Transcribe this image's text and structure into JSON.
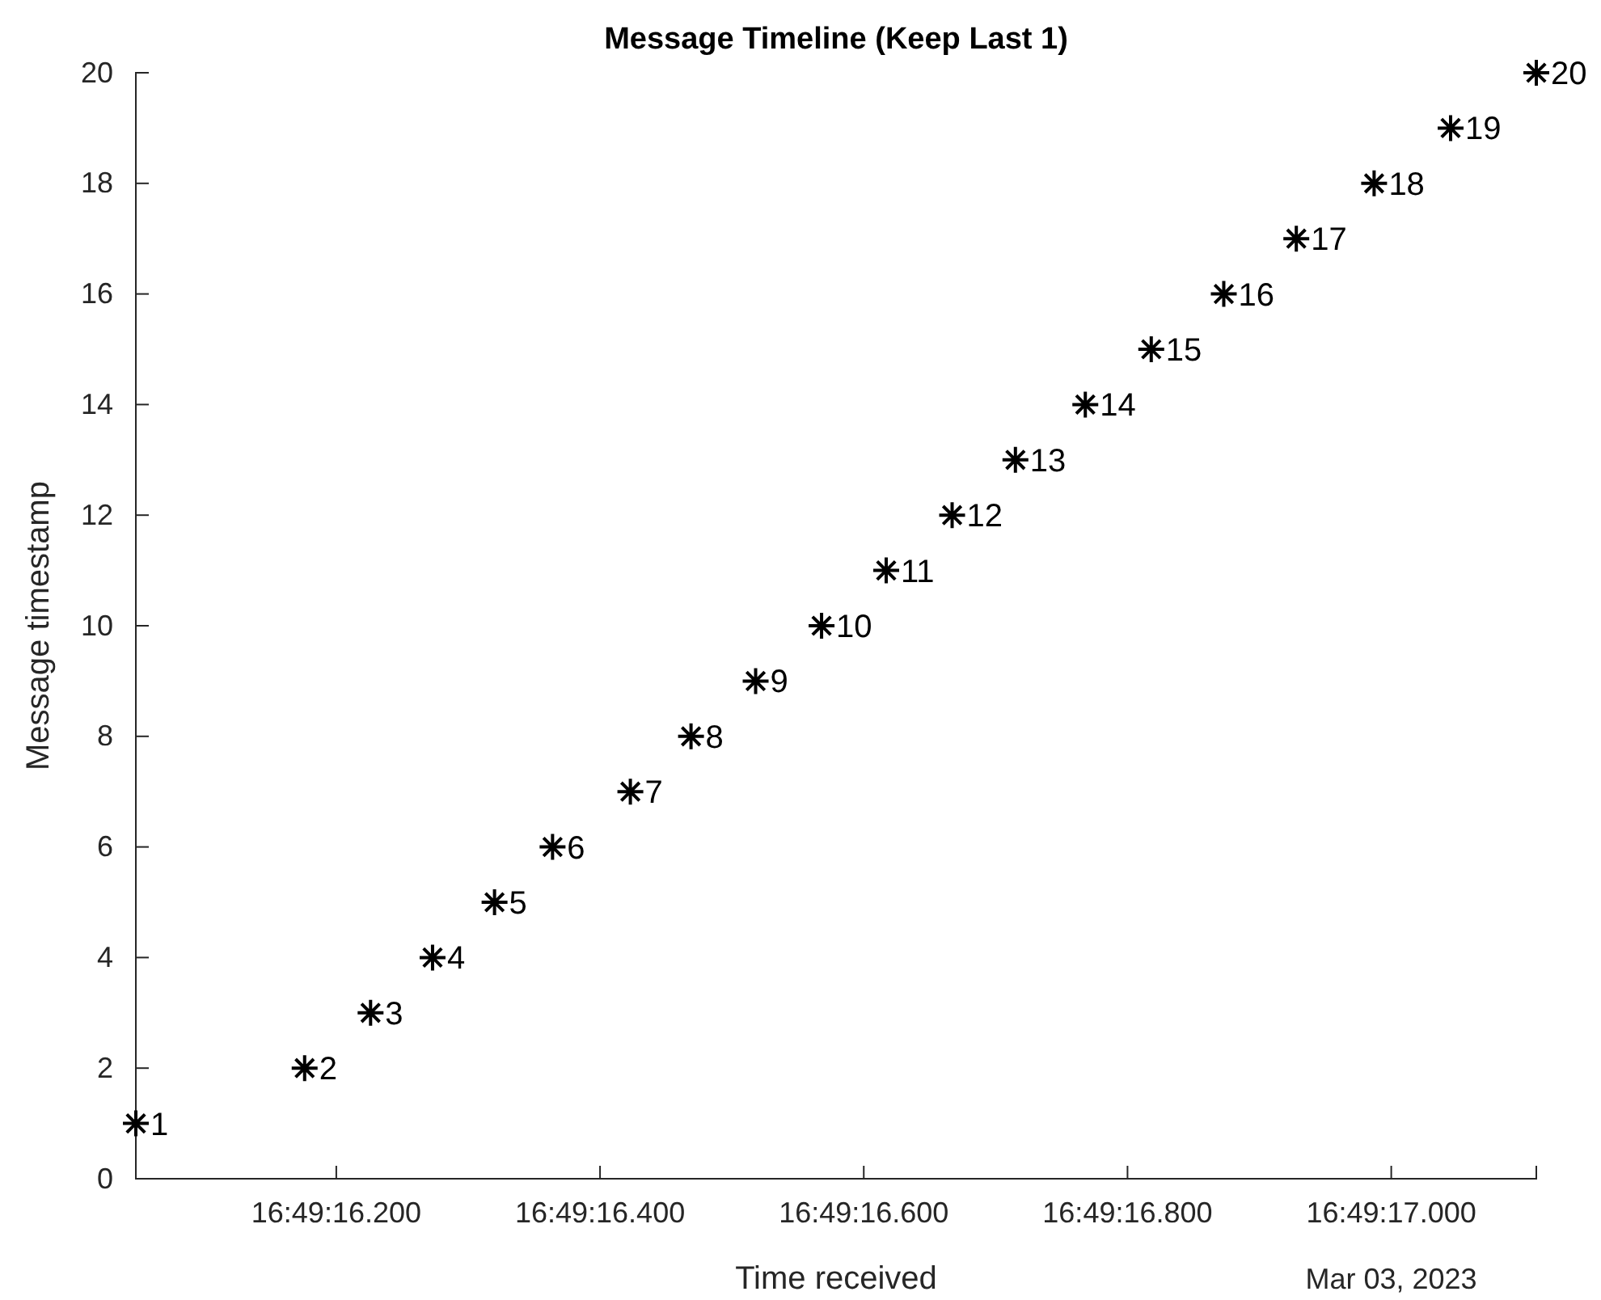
{
  "chart_data": {
    "type": "scatter",
    "title": "Message Timeline (Keep Last 1)",
    "xlabel": "Time received",
    "ylabel": "Message timestamp",
    "x": [
      "2023-03-03T16:49:16.048",
      "2023-03-03T16:49:16.176",
      "2023-03-03T16:49:16.226",
      "2023-03-03T16:49:16.273",
      "2023-03-03T16:49:16.320",
      "2023-03-03T16:49:16.364",
      "2023-03-03T16:49:16.423",
      "2023-03-03T16:49:16.469",
      "2023-03-03T16:49:16.518",
      "2023-03-03T16:49:16.568",
      "2023-03-03T16:49:16.617",
      "2023-03-03T16:49:16.667",
      "2023-03-03T16:49:16.715",
      "2023-03-03T16:49:16.768",
      "2023-03-03T16:49:16.818",
      "2023-03-03T16:49:16.873",
      "2023-03-03T16:49:16.928",
      "2023-03-03T16:49:16.987",
      "2023-03-03T16:49:17.045",
      "2023-03-03T16:49:17.110"
    ],
    "values": [
      1,
      2,
      3,
      4,
      5,
      6,
      7,
      8,
      9,
      10,
      11,
      12,
      13,
      14,
      15,
      16,
      17,
      18,
      19,
      20
    ],
    "color": "#000000",
    "marker": "cross",
    "data_labels": true,
    "xlim": [
      "2023-03-03T16:49:16.048",
      "2023-03-03T16:49:17.110"
    ],
    "xticks": [
      {
        "value": "2023-03-03T16:49:16.200",
        "label": "16:49:16.200"
      },
      {
        "value": "2023-03-03T16:49:16.400",
        "label": "16:49:16.400"
      },
      {
        "value": "2023-03-03T16:49:16.600",
        "label": "16:49:16.600"
      },
      {
        "value": "2023-03-03T16:49:16.800",
        "label": "16:49:16.800"
      },
      {
        "value": "2023-03-03T16:49:17.000",
        "label": "16:49:17.000"
      }
    ],
    "ylim": [
      0,
      20
    ],
    "yticks": [
      0,
      2,
      4,
      6,
      8,
      10,
      12,
      14,
      16,
      18,
      20
    ],
    "annotations": [
      "Mar 03, 2023"
    ]
  }
}
